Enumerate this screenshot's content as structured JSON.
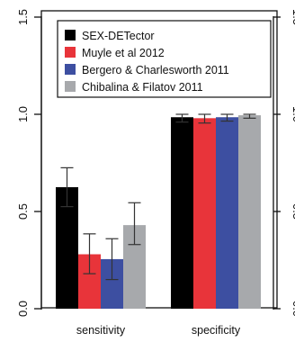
{
  "chart_data": {
    "type": "bar",
    "title": "",
    "xlabel": "",
    "ylabel": "",
    "categories": [
      "sensitivity",
      "specificity"
    ],
    "ylim": [
      0,
      1.5
    ],
    "yticks": [
      "0.0",
      "0.5",
      "1.0",
      "1.5"
    ],
    "legend": {
      "placement": "top-right-inside"
    },
    "colors": [
      "#000000",
      "#e8343a",
      "#3d4fa1",
      "#a7a9ac"
    ],
    "series": [
      {
        "name": "SEX-DETector",
        "values": [
          0.625,
          0.985
        ],
        "err_low": [
          0.525,
          0.96
        ],
        "err_high": [
          0.725,
          1.0
        ]
      },
      {
        "name": "Muyle et al 2012",
        "values": [
          0.28,
          0.98
        ],
        "err_low": [
          0.18,
          0.955
        ],
        "err_high": [
          0.385,
          1.0
        ]
      },
      {
        "name": "Bergero & Charlesworth 2011",
        "values": [
          0.255,
          0.985
        ],
        "err_low": [
          0.15,
          0.965
        ],
        "err_high": [
          0.36,
          1.0
        ]
      },
      {
        "name": "Chibalina & Filatov 2011",
        "values": [
          0.43,
          0.995
        ],
        "err_low": [
          0.33,
          0.98
        ],
        "err_high": [
          0.545,
          1.0
        ]
      }
    ]
  }
}
